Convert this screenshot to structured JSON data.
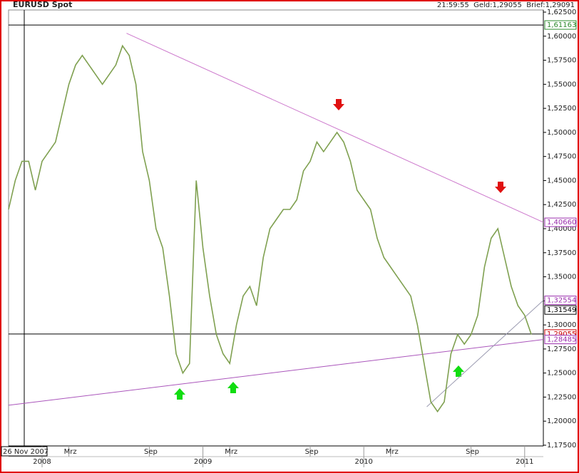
{
  "chart_data": {
    "type": "line",
    "title": "EURUSD Spot",
    "status": "21:59:55  Geld:1,29055  Brief:1,29091",
    "color": "#7fa050",
    "categories": [
      null,
      null,
      null,
      null,
      null,
      null,
      null,
      null,
      null,
      "Mrz",
      null,
      null,
      null,
      null,
      null,
      null,
      null,
      null,
      null,
      null,
      null,
      "Sep",
      null,
      null,
      null,
      null,
      null,
      null,
      null,
      null,
      null,
      null,
      null,
      "Mrz",
      null,
      null,
      null,
      null,
      null,
      null,
      null,
      null,
      null,
      null,
      null,
      "Sep",
      null,
      null,
      null,
      null,
      null,
      null,
      null,
      null,
      null,
      null,
      null,
      "Mrz",
      null,
      null,
      null,
      null,
      null,
      null,
      null,
      null,
      null,
      null,
      null,
      "Sep",
      null,
      null,
      null,
      null,
      null,
      null,
      null,
      null,
      null
    ],
    "categories2": [
      null,
      null,
      null,
      null,
      null,
      "2008",
      null,
      null,
      null,
      null,
      null,
      null,
      null,
      null,
      null,
      null,
      null,
      null,
      null,
      null,
      null,
      null,
      null,
      null,
      null,
      null,
      null,
      null,
      null,
      "2009",
      null,
      null,
      null,
      null,
      null,
      null,
      null,
      null,
      null,
      null,
      null,
      null,
      null,
      null,
      null,
      null,
      null,
      null,
      null,
      null,
      null,
      null,
      null,
      "2010",
      null,
      null,
      null,
      null,
      null,
      null,
      null,
      null,
      null,
      null,
      null,
      null,
      null,
      null,
      null,
      null,
      null,
      null,
      null,
      null,
      null,
      null,
      null,
      "2011",
      null
    ],
    "values": [
      1.42,
      1.45,
      1.47,
      1.47,
      1.44,
      1.47,
      1.48,
      1.49,
      1.52,
      1.55,
      1.57,
      1.58,
      1.57,
      1.56,
      1.55,
      1.56,
      1.57,
      1.59,
      1.58,
      1.55,
      1.48,
      1.45,
      1.4,
      1.38,
      1.33,
      1.27,
      1.25,
      1.26,
      1.45,
      1.38,
      1.33,
      1.29,
      1.27,
      1.26,
      1.3,
      1.33,
      1.34,
      1.32,
      1.37,
      1.4,
      1.41,
      1.42,
      1.42,
      1.43,
      1.46,
      1.47,
      1.49,
      1.48,
      1.49,
      1.5,
      1.49,
      1.47,
      1.44,
      1.43,
      1.42,
      1.39,
      1.37,
      1.36,
      1.35,
      1.34,
      1.33,
      1.3,
      1.26,
      1.22,
      1.21,
      1.22,
      1.27,
      1.29,
      1.28,
      1.29,
      1.31,
      1.36,
      1.39,
      1.4,
      1.37,
      1.34,
      1.32,
      1.31,
      1.29
    ],
    "ylim": [
      1.175,
      1.625
    ],
    "yticks": [
      {
        "value": 1.175,
        "label": "1,17500"
      },
      {
        "value": 1.2,
        "label": "1,20000"
      },
      {
        "value": 1.225,
        "label": "1,22500"
      },
      {
        "value": 1.25,
        "label": "1,25000"
      },
      {
        "value": 1.275,
        "label": "1,27500"
      },
      {
        "value": 1.3,
        "label": "1,30000"
      },
      {
        "value": 1.325,
        "label": "1,32500"
      },
      {
        "value": 1.35,
        "label": "1,35000"
      },
      {
        "value": 1.375,
        "label": "1,37500"
      },
      {
        "value": 1.4,
        "label": "1,40000"
      },
      {
        "value": 1.425,
        "label": "1,42500"
      },
      {
        "value": 1.45,
        "label": "1,45000"
      },
      {
        "value": 1.475,
        "label": "1,47500"
      },
      {
        "value": 1.5,
        "label": "1,50000"
      },
      {
        "value": 1.525,
        "label": "1,52500"
      },
      {
        "value": 1.55,
        "label": "1,55000"
      },
      {
        "value": 1.575,
        "label": "1,57500"
      },
      {
        "value": 1.6,
        "label": "1,60000"
      },
      {
        "value": 1.625,
        "label": "1,62500"
      }
    ],
    "levels": [
      {
        "value": 1.61163,
        "label": "1,61163",
        "color": "#2e8b2e",
        "line": true
      },
      {
        "value": 1.4066,
        "label": "1,40660",
        "color": "#9b2fae",
        "line": false
      },
      {
        "value": 1.32554,
        "label": "1,32554",
        "color": "#9b2fae",
        "line": false
      },
      {
        "value": 1.31549,
        "label": "1,31549",
        "color": "#000000",
        "line": false
      },
      {
        "value": 1.29055,
        "label": "1,29055",
        "color": "#cc0000",
        "line": true
      },
      {
        "value": 1.28485,
        "label": "1,28485",
        "color": "#9b2fae",
        "line": false
      }
    ],
    "trendlines": [
      {
        "start": [
          17.6,
          1.603
        ],
        "end": [
          79.8,
          1.4066
        ],
        "color": "#cc77cc"
      },
      {
        "start": [
          0,
          1.2165
        ],
        "end": [
          79.8,
          1.28485
        ],
        "color": "#aa55bb"
      },
      {
        "start": [
          62.4,
          1.215
        ],
        "end": [
          79.8,
          1.32554
        ],
        "color": "#9a9ab0"
      }
    ],
    "crosshair": {
      "index": 2.34,
      "label": "26 Nov 2007"
    }
  }
}
